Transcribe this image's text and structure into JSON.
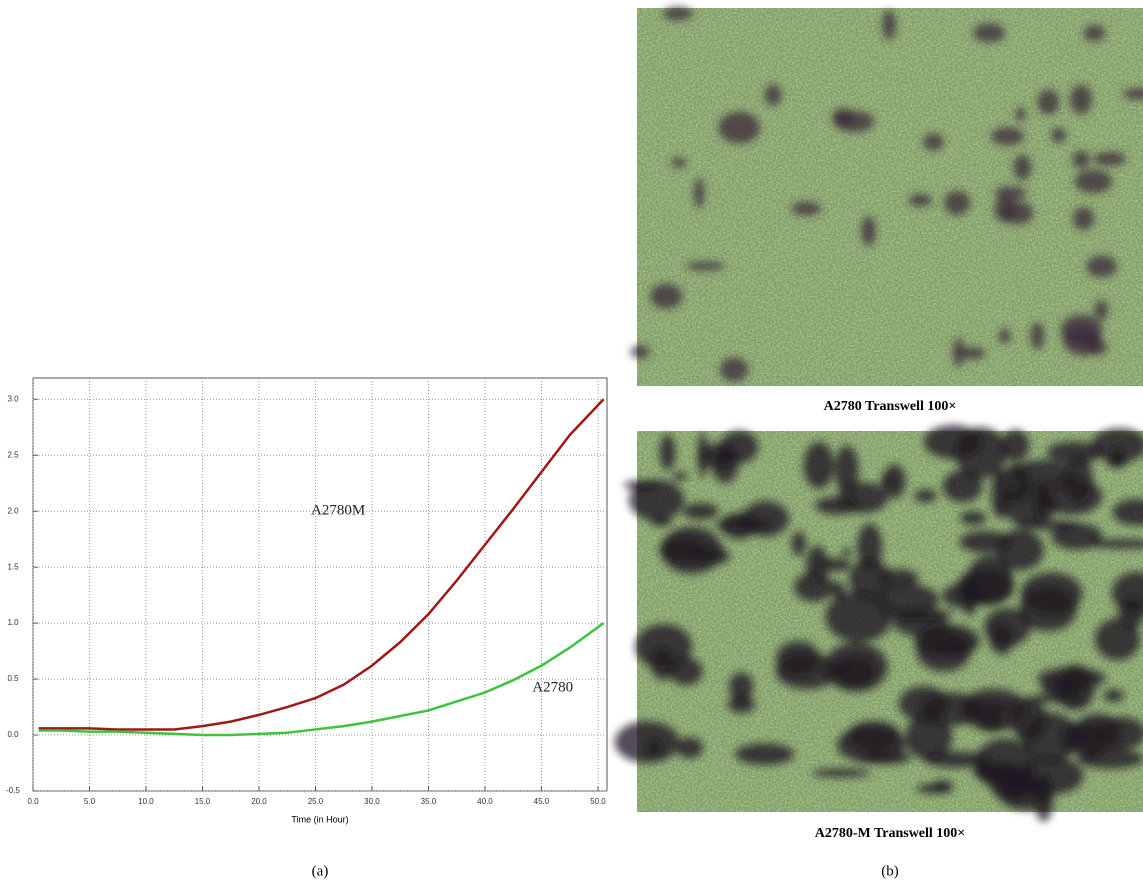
{
  "chart_data": {
    "type": "line",
    "x_label": "Time (in Hour)",
    "x": [
      0.5,
      2.5,
      5,
      7.5,
      10,
      12.5,
      15,
      17.5,
      20,
      22.5,
      25,
      27.5,
      30,
      32.5,
      35,
      37.5,
      40,
      42.5,
      45,
      47.5,
      50.5
    ],
    "series": [
      {
        "name": "A2780M",
        "color": "#a01818",
        "values": [
          0.06,
          0.06,
          0.06,
          0.05,
          0.05,
          0.05,
          0.08,
          0.12,
          0.18,
          0.25,
          0.33,
          0.45,
          0.62,
          0.83,
          1.08,
          1.38,
          1.7,
          2.02,
          2.35,
          2.68,
          3.0
        ]
      },
      {
        "name": "A2780",
        "color": "#3cc43c",
        "values": [
          0.04,
          0.04,
          0.03,
          0.03,
          0.02,
          0.01,
          0.0,
          0.0,
          0.01,
          0.02,
          0.05,
          0.08,
          0.12,
          0.17,
          0.22,
          0.3,
          0.38,
          0.49,
          0.62,
          0.78,
          1.0
        ]
      }
    ],
    "xlim": [
      0,
      50.8
    ],
    "ylim": [
      -0.5,
      3.19
    ],
    "xticks": [
      {
        "value": 0,
        "label": "0.0"
      },
      {
        "value": 5,
        "label": "5.0"
      },
      {
        "value": 10,
        "label": "10.0"
      },
      {
        "value": 15,
        "label": "15.0"
      },
      {
        "value": 20,
        "label": "20.0"
      },
      {
        "value": 25,
        "label": "25.0"
      },
      {
        "value": 30,
        "label": "30.0"
      },
      {
        "value": 35,
        "label": "35.0"
      },
      {
        "value": 40,
        "label": "40.0"
      },
      {
        "value": 45,
        "label": "45.0"
      },
      {
        "value": 50,
        "label": "50.0"
      }
    ],
    "yticks": [
      {
        "value": -0.5,
        "label": "-0.5"
      },
      {
        "value": 0,
        "label": "0.0"
      },
      {
        "value": 0.5,
        "label": "0.5"
      },
      {
        "value": 1,
        "label": "1.0"
      },
      {
        "value": 1.5,
        "label": "1.5"
      },
      {
        "value": 2,
        "label": "2.0"
      },
      {
        "value": 2.5,
        "label": "2.5"
      },
      {
        "value": 3,
        "label": "3.0"
      }
    ],
    "grid": true
  },
  "figure": {
    "label_a": "(a)",
    "label_b": "(b)",
    "images": [
      {
        "caption": "A2780 Transwell 100×"
      },
      {
        "caption": "A2780-M Transwell 100×"
      }
    ]
  }
}
